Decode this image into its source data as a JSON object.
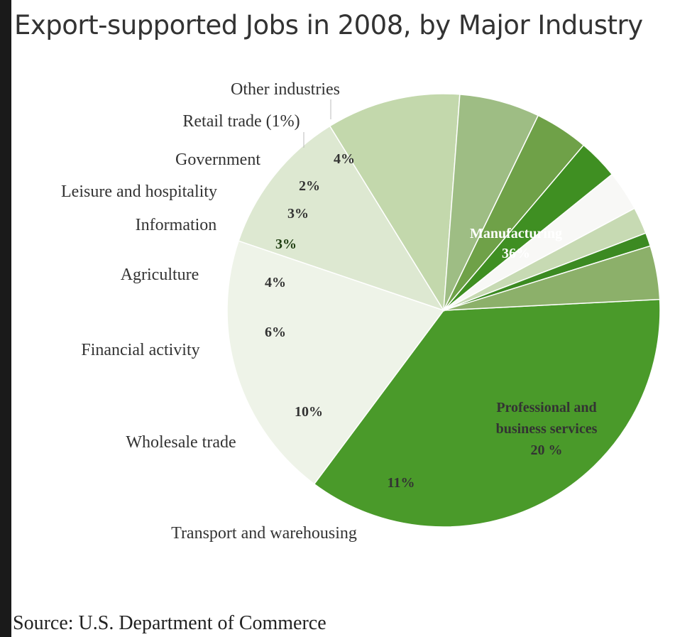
{
  "title": "Export-supported Jobs in 2008, by Major Industry",
  "source": "Source: U.S. Department of Commerce",
  "chart_data": {
    "type": "pie",
    "title": "Export-supported Jobs in 2008, by Major Industry",
    "unit": "%",
    "slices": [
      {
        "label": "Manufacturing",
        "value": 36,
        "value_label": "36%",
        "color": "#4a9a2a"
      },
      {
        "label": "Professional and business services",
        "value": 20,
        "value_label": "20 %",
        "color": "#eef3e8"
      },
      {
        "label": "Transport and warehousing",
        "value": 11,
        "value_label": "11%",
        "color": "#dde8d1"
      },
      {
        "label": "Wholesale trade",
        "value": 10,
        "value_label": "10%",
        "color": "#c3d8ac"
      },
      {
        "label": "Financial activity",
        "value": 6,
        "value_label": "6%",
        "color": "#9ebd84"
      },
      {
        "label": "Agriculture",
        "value": 4,
        "value_label": "4%",
        "color": "#6fa148"
      },
      {
        "label": "Information",
        "value": 3,
        "value_label": "3%",
        "color": "#3f8f22"
      },
      {
        "label": "Leisure and hospitality",
        "value": 3,
        "value_label": "3%",
        "color": "#f8f8f6"
      },
      {
        "label": "Government",
        "value": 2,
        "value_label": "2%",
        "color": "#c7dab3"
      },
      {
        "label": "Retail trade (1%)",
        "value": 1,
        "value_label": "",
        "color": "#3c8a22"
      },
      {
        "label": "Other industries",
        "value": 4,
        "value_label": "4%",
        "color": "#8cb06a"
      }
    ]
  }
}
